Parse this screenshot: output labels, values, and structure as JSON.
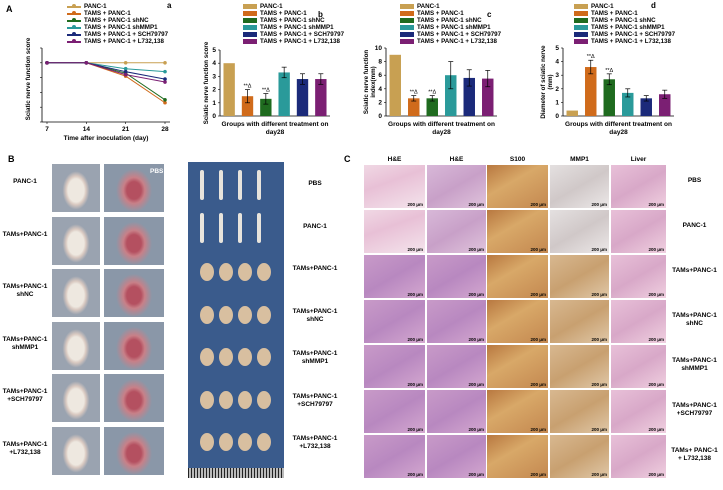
{
  "panel_letters": {
    "A": "A",
    "B": "B",
    "C": "C",
    "a": "a",
    "b": "b",
    "c": "c",
    "d": "d"
  },
  "colors": {
    "panc1": "#c8a052",
    "tams_panc1": "#d06b1b",
    "shnc": "#1f6b1f",
    "shmmp1": "#2a9a9a",
    "sch79797": "#1b2a7a",
    "l732138": "#7b1f73"
  },
  "chart_data": [
    {
      "id": "a",
      "type": "line",
      "title": "",
      "xlabel": "Time after inoculation (day)",
      "ylabel": "Sciatic nerve function score",
      "x": [
        7,
        14,
        21,
        28
      ],
      "xlim": [
        7,
        28
      ],
      "ylim": [
        0,
        5
      ],
      "yticks": [
        0,
        1,
        2,
        3,
        4,
        5
      ],
      "legend": [
        "PANC-1",
        "TAMS + PANC-1",
        "TAMS + PANC-1 shNC",
        "TAMS + PANC-1 shMMP1",
        "TAMS + PANC-1 + SCH79797",
        "TAMS + PANC-1 + L732,138"
      ],
      "series": [
        {
          "name": "PANC-1",
          "values": [
            4,
            4,
            4,
            4
          ]
        },
        {
          "name": "TAMS + PANC-1",
          "values": [
            4,
            4,
            3.1,
            1.3
          ]
        },
        {
          "name": "TAMS + PANC-1 shNC",
          "values": [
            4,
            4,
            3.3,
            1.5
          ]
        },
        {
          "name": "TAMS + PANC-1 shMMP1",
          "values": [
            4,
            4,
            3.6,
            3.4
          ]
        },
        {
          "name": "TAMS + PANC-1 + SCH79797",
          "values": [
            4,
            4,
            3.4,
            2.9
          ]
        },
        {
          "name": "TAMS + PANC-1 + L732,138",
          "values": [
            4,
            4,
            3.2,
            2.7
          ]
        }
      ]
    },
    {
      "id": "b",
      "type": "bar",
      "xlabel": "Groups with different treatment on day28",
      "ylabel": "Sciatic nerve function score",
      "ylim": [
        0,
        5
      ],
      "yticks": [
        0,
        1,
        2,
        3,
        4,
        5
      ],
      "legend": [
        "PANC-1",
        "TAMS + PANC-1",
        "TAMS + PANC-1 shNC",
        "TAMS + PANC-1 shMMP1",
        "TAMS + PANC-1 + SCH79797",
        "TAMS + PANC-1 + L732,138"
      ],
      "values": [
        4.0,
        1.5,
        1.3,
        3.3,
        2.8,
        2.8
      ],
      "errors": [
        0,
        0.5,
        0.4,
        0.4,
        0.4,
        0.4
      ],
      "annotations": [
        "",
        "**Δ",
        "**Δ",
        "",
        "",
        ""
      ]
    },
    {
      "id": "c",
      "type": "bar",
      "xlabel": "Groups with different treatment on day28",
      "ylabel": "Sciatic nerve function index(mm)",
      "ylim": [
        0,
        10
      ],
      "yticks": [
        0,
        2,
        4,
        6,
        8,
        10
      ],
      "legend": [
        "PANC-1",
        "TAMS + PANC-1",
        "TAMS + PANC-1 shNC",
        "TAMS + PANC-1 shMMP1",
        "TAMS + PANC-1 + SCH79797",
        "TAMS + PANC-1 + L732,138"
      ],
      "values": [
        9.0,
        2.6,
        2.6,
        6.0,
        5.6,
        5.5
      ],
      "errors": [
        0,
        0.4,
        0.4,
        2.0,
        1.2,
        1.2
      ],
      "annotations": [
        "",
        "**Δ",
        "**Δ",
        "",
        "",
        ""
      ]
    },
    {
      "id": "d",
      "type": "bar",
      "xlabel": "Groups with different treatment on day28",
      "ylabel": "Diameter of sciatic nerve (mm)",
      "ylim": [
        0,
        5
      ],
      "yticks": [
        0,
        1,
        2,
        3,
        4,
        5
      ],
      "legend": [
        "PANC-1",
        "TAMS + PANC-1",
        "TAMS + PANC-1 shNC",
        "TAMS + PANC-1 shMMP1",
        "TAMS + PANC-1 + SCH79797",
        "TAMS + PANC-1 + L732,138"
      ],
      "values": [
        0.4,
        3.6,
        2.7,
        1.7,
        1.3,
        1.6
      ],
      "errors": [
        0,
        0.5,
        0.4,
        0.3,
        0.2,
        0.3
      ],
      "annotations": [
        "",
        "**Δ",
        "**Δ",
        "",
        "",
        ""
      ]
    }
  ],
  "panel_b": {
    "pbs_label": "PBS",
    "mouse_rows": [
      "PANC-1",
      "TAMs+PANC-1",
      "TAMs+PANC-1\nshNC",
      "TAMs+PANC-1\nshMMP1",
      "TAMs+PANC-1\n+SCH79797",
      "TAMs+PANC-1\n+L732,138"
    ],
    "nerve_rows": [
      "PBS",
      "PANC-1",
      "TAMs+PANC-1",
      "TAMs+PANC-1\nshNC",
      "TAMs+PANC-1\nshMMP1",
      "TAMs+PANC-1\n+SCH79797",
      "TAMs+PANC-1\n+L732,138"
    ]
  },
  "panel_c": {
    "columns": [
      "H&E",
      "H&E",
      "S100",
      "MMP1",
      "Liver"
    ],
    "rows": [
      "PBS",
      "PANC-1",
      "TAMs+PANC-1",
      "TAMs+PANC-1\nshNC",
      "TAMs+PANC-1\nshMMP1",
      "TAMs+PANC-1\n+SCH79797",
      "TAMs+ PANC-1\n+ L732,138"
    ],
    "scale_bar": "200 μm"
  }
}
